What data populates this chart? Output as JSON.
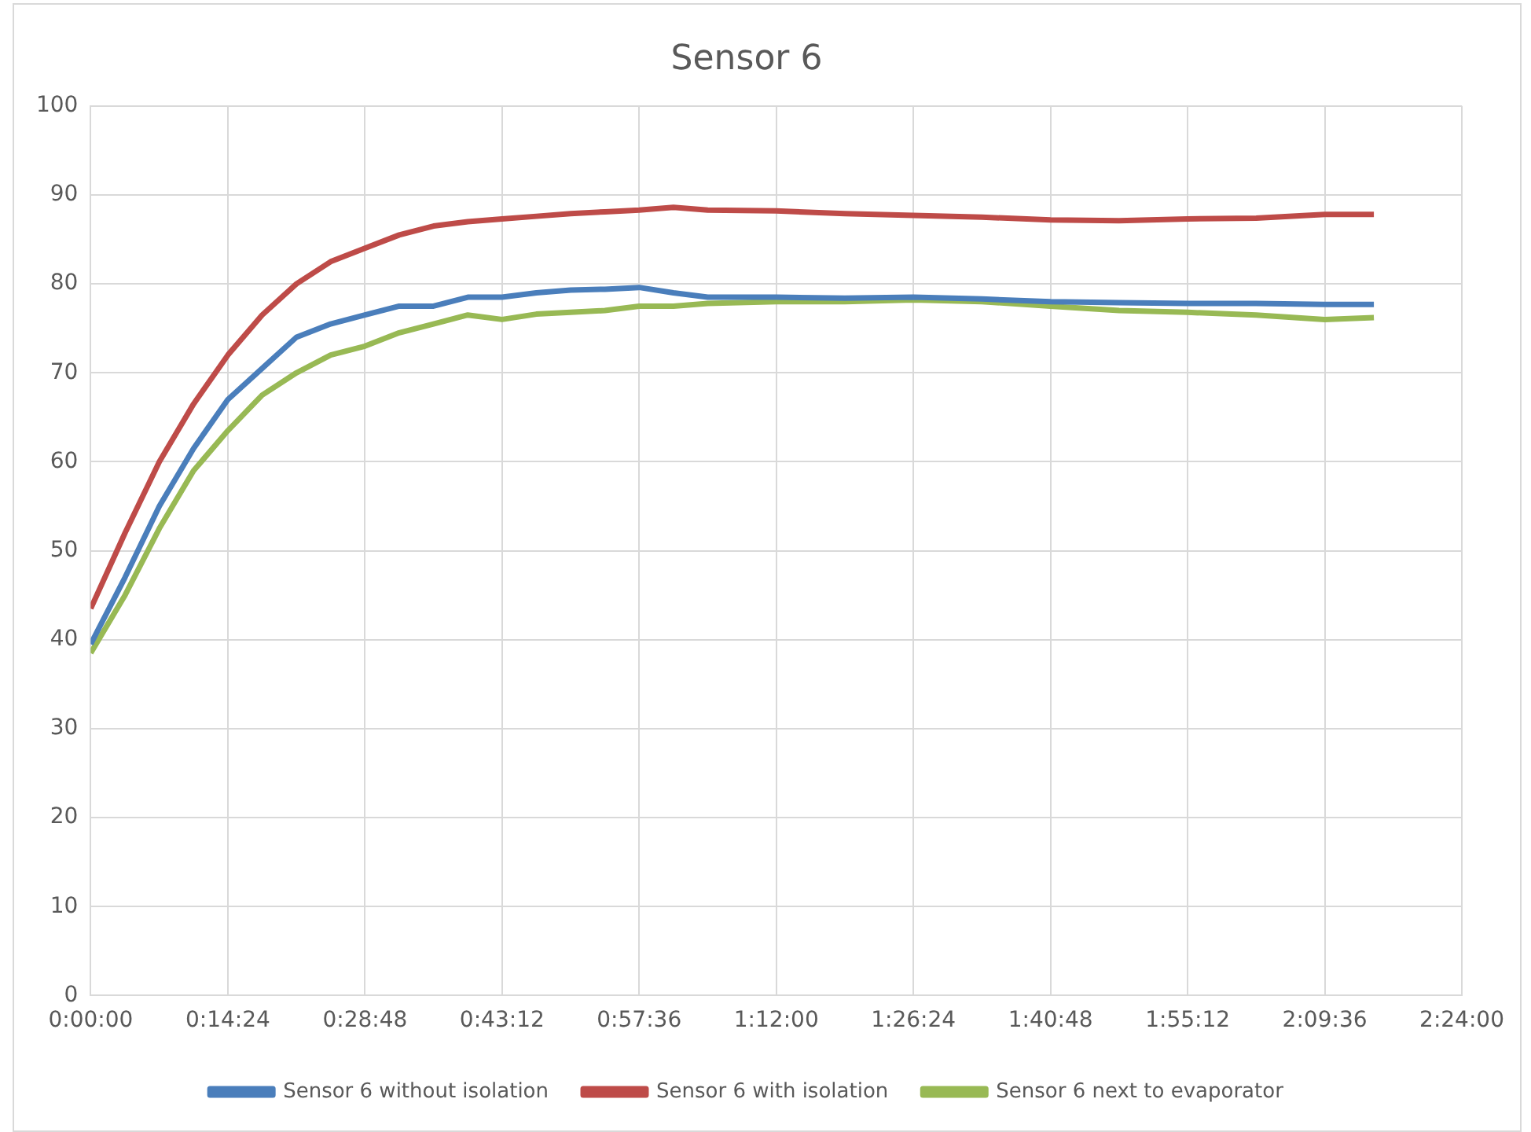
{
  "chart_data": {
    "type": "line",
    "title": "Sensor 6",
    "x": [
      0,
      0.06,
      0.12,
      0.18,
      0.24,
      0.3,
      0.36,
      0.42,
      0.48,
      0.54,
      0.6,
      0.66,
      0.72,
      0.78,
      0.84,
      0.9,
      0.96,
      1.02,
      1.08,
      1.2,
      1.32,
      1.44,
      1.56,
      1.68,
      1.8,
      1.92,
      2.04,
      2.16,
      2.246
    ],
    "series": [
      {
        "name": "Sensor 6 without isolation",
        "color": "#4a7ebb",
        "values": [
          39.5,
          47,
          55,
          61.5,
          67,
          70.5,
          74,
          75.5,
          76.5,
          77.5,
          77.5,
          78.5,
          78.5,
          79,
          79.3,
          79.4,
          79.6,
          79,
          78.5,
          78.5,
          78.4,
          78.5,
          78.3,
          78,
          77.9,
          77.8,
          77.8,
          77.7,
          77.7
        ]
      },
      {
        "name": "Sensor 6 with isolation",
        "color": "#be4b48",
        "values": [
          43.5,
          52,
          60,
          66.5,
          72,
          76.5,
          80,
          82.5,
          84,
          85.5,
          86.5,
          87,
          87.3,
          87.6,
          87.9,
          88.1,
          88.3,
          88.6,
          88.3,
          88.2,
          87.9,
          87.7,
          87.5,
          87.2,
          87.1,
          87.3,
          87.4,
          87.8,
          87.8
        ]
      },
      {
        "name": "Sensor 6 next to evaporator",
        "color": "#98b954",
        "values": [
          38.5,
          45,
          52.5,
          59,
          63.5,
          67.5,
          70,
          72,
          73,
          74.5,
          75.5,
          76.5,
          76,
          76.6,
          76.8,
          77,
          77.5,
          77.5,
          77.8,
          78,
          78,
          78.2,
          78,
          77.5,
          77,
          76.8,
          76.5,
          76,
          76.2
        ]
      }
    ],
    "xlim": [
      0,
      2.4
    ],
    "xticks": [
      {
        "value": 0,
        "label": "0:00:00"
      },
      {
        "value": 0.24,
        "label": "0:14:24"
      },
      {
        "value": 0.48,
        "label": "0:28:48"
      },
      {
        "value": 0.72,
        "label": "0:43:12"
      },
      {
        "value": 0.96,
        "label": "0:57:36"
      },
      {
        "value": 1.2,
        "label": "1:12:00"
      },
      {
        "value": 1.44,
        "label": "1:26:24"
      },
      {
        "value": 1.68,
        "label": "1:40:48"
      },
      {
        "value": 1.92,
        "label": "1:55:12"
      },
      {
        "value": 2.16,
        "label": "2:09:36"
      },
      {
        "value": 2.4,
        "label": "2:24:00"
      }
    ],
    "ylim": [
      0,
      100
    ],
    "yticks": [
      0,
      10,
      20,
      30,
      40,
      50,
      60,
      70,
      80,
      90,
      100
    ],
    "grid": true,
    "legend": "bottom",
    "marker": "none",
    "line_style": "solid"
  }
}
